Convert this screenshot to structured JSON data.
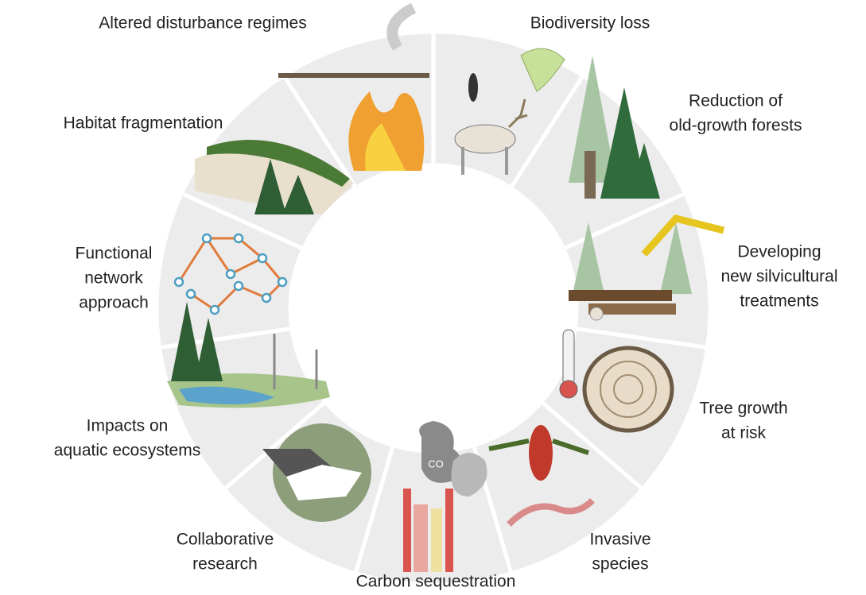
{
  "nodes": [
    {
      "label_lines": [
        "Biodiversity loss"
      ]
    },
    {
      "label_lines": [
        "Reduction of",
        "old-growth forests"
      ]
    },
    {
      "label_lines": [
        "Developing",
        "new silvicultural",
        "treatments"
      ]
    },
    {
      "label_lines": [
        "Tree growth",
        "at risk"
      ]
    },
    {
      "label_lines": [
        "Invasive",
        "species"
      ]
    },
    {
      "label_lines": [
        "Carbon sequestration"
      ]
    },
    {
      "label_lines": [
        "Collaborative",
        "research"
      ]
    },
    {
      "label_lines": [
        "Impacts on",
        "aquatic ecosystems"
      ]
    },
    {
      "label_lines": [
        "Functional",
        "network",
        "approach"
      ]
    },
    {
      "label_lines": [
        "Habitat fragmentation"
      ]
    },
    {
      "label_lines": [
        "Altered disturbance regimes"
      ]
    }
  ],
  "icons": {
    "co2": "CO"
  }
}
